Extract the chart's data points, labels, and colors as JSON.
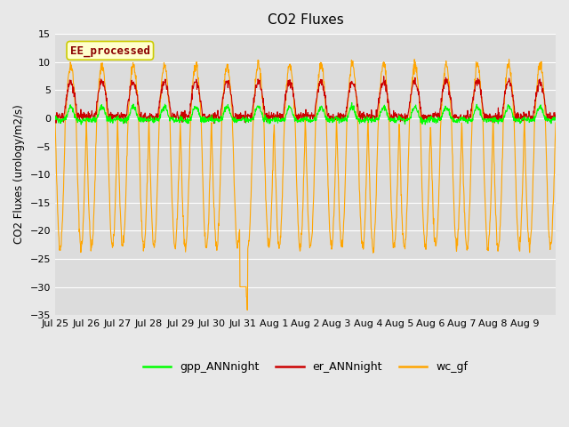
{
  "title": "CO2 Fluxes",
  "ylabel": "CO2 Fluxes (urology/m2/s)",
  "ylim": [
    -35,
    15
  ],
  "yticks": [
    -35,
    -30,
    -25,
    -20,
    -15,
    -10,
    -5,
    0,
    5,
    10,
    15
  ],
  "background_color": "#e8e8e8",
  "plot_bg_color": "#dcdcdc",
  "line_colors": {
    "gpp": "#00ff00",
    "er": "#cc0000",
    "wc": "#ffa500"
  },
  "legend_labels": [
    "gpp_ANNnight",
    "er_ANNnight",
    "wc_gf"
  ],
  "annotation_text": "EE_processed",
  "annotation_fgcolor": "#8b0000",
  "annotation_bgcolor": "#ffffcc",
  "n_days": 16,
  "points_per_day": 96,
  "x_tick_labels": [
    "Jul 25",
    "Jul 26",
    "Jul 27",
    "Jul 28",
    "Jul 29",
    "Jul 30",
    "Jul 31",
    "Aug 1",
    "Aug 2",
    "Aug 3",
    "Aug 4",
    "Aug 5",
    "Aug 6",
    "Aug 7",
    "Aug 8",
    "Aug 9"
  ]
}
